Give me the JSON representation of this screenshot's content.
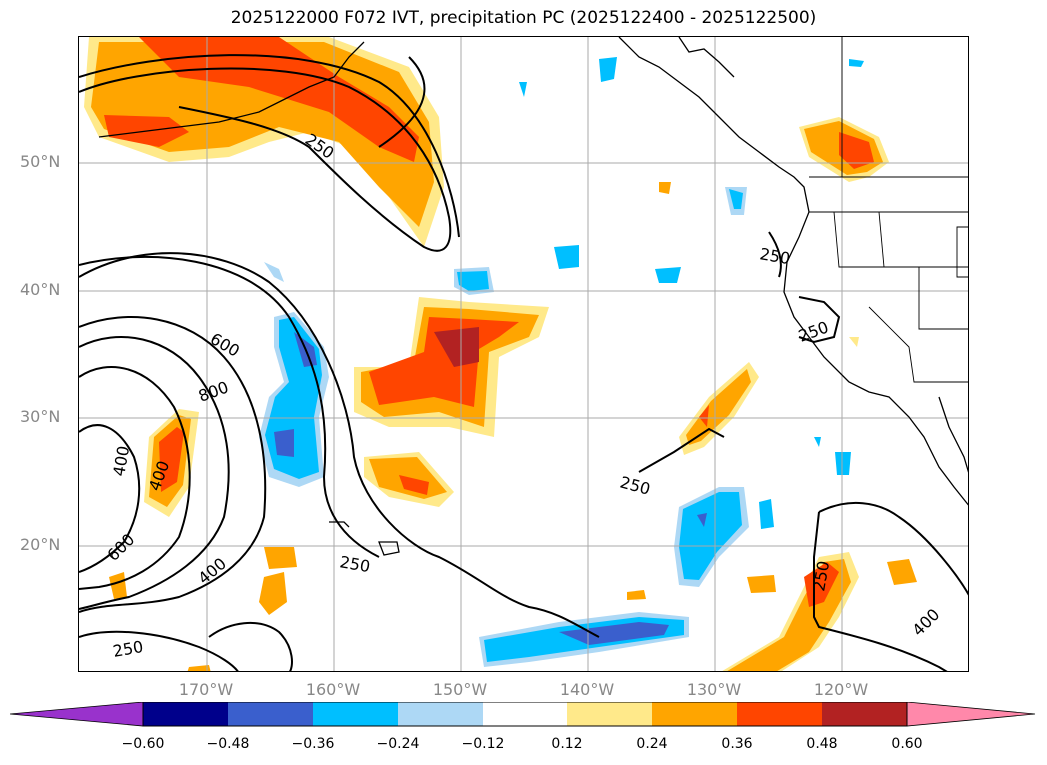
{
  "title": "2025122000 F072 IVT, precipitation PC (2025122400 - 2025122500)",
  "lat_labels": [
    "50°N",
    "40°N",
    "30°N",
    "20°N"
  ],
  "lon_labels": [
    "170°W",
    "160°W",
    "150°W",
    "140°W",
    "130°W",
    "120°W"
  ],
  "contour_labels": [
    "250",
    "250",
    "250",
    "250",
    "250",
    "250",
    "250",
    "400",
    "400",
    "400",
    "600",
    "600",
    "800",
    "400"
  ],
  "colorbar": {
    "ticks": [
      "−0.60",
      "−0.48",
      "−0.36",
      "−0.24",
      "−0.12",
      "0.12",
      "0.24",
      "0.36",
      "0.48",
      "0.60"
    ],
    "colors": [
      "#9932cc",
      "#00008b",
      "#3a5fcd",
      "#00bfff",
      "#add8f5",
      "#ffffff",
      "#ffe98a",
      "#ffa500",
      "#ff4500",
      "#b22222",
      "#ff88aa"
    ]
  }
}
